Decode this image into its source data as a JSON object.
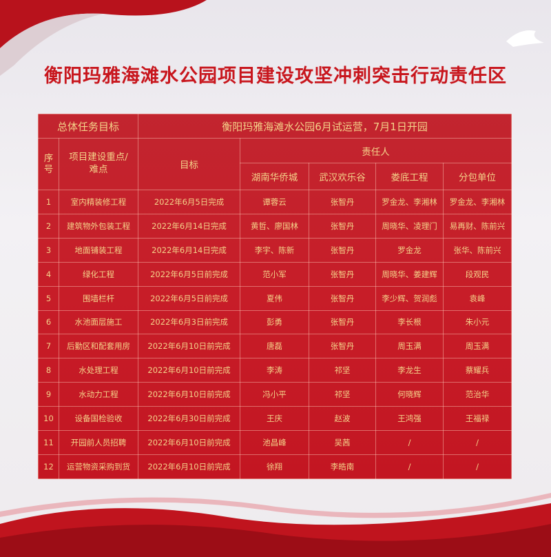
{
  "title": "衡阳玛雅海滩水公园项目建设攻坚冲刺突击行动责任区",
  "table": {
    "overall_label": "总体任务目标",
    "overall_value": "衡阳玛雅海滩水公园6月试运营，7月1日开园",
    "headers": {
      "index": "序号",
      "item": "项目建设重点/难点",
      "target": "目标",
      "responsible": "责任人",
      "units": [
        "湖南华侨城",
        "武汉欢乐谷",
        "娄底工程",
        "分包单位"
      ]
    },
    "rows": [
      [
        "1",
        "室内精装修工程",
        "2022年6月5日完成",
        "谭蓉云",
        "张智丹",
        "罗金龙、李湘林",
        "罗金龙、李湘林"
      ],
      [
        "2",
        "建筑物外包装工程",
        "2022年6月14日完成",
        "黄哲、廖国林",
        "张智丹",
        "周晓华、凌理门",
        "易再财、陈前兴"
      ],
      [
        "3",
        "地面铺装工程",
        "2022年6月14日完成",
        "李宇、陈新",
        "张智丹",
        "罗金龙",
        "张华、陈前兴"
      ],
      [
        "4",
        "绿化工程",
        "2022年6月5日前完成",
        "范小军",
        "张智丹",
        "周晓华、姜建辉",
        "段观民"
      ],
      [
        "5",
        "围墙栏杆",
        "2022年6月5日前完成",
        "夏伟",
        "张智丹",
        "李少辉、贺润彪",
        "袁峰"
      ],
      [
        "6",
        "水池面层施工",
        "2022年6月3日前完成",
        "彭勇",
        "张智丹",
        "李长根",
        "朱小元"
      ],
      [
        "7",
        "后勤区和配套用房",
        "2022年6月10日前完成",
        "唐磊",
        "张智丹",
        "周玉满",
        "周玉满"
      ],
      [
        "8",
        "水处理工程",
        "2022年6月10日前完成",
        "李涛",
        "祁坚",
        "李龙生",
        "蔡耀兵"
      ],
      [
        "9",
        "水动力工程",
        "2022年6月10日前完成",
        "冯小平",
        "祁坚",
        "何晓辉",
        "范治华"
      ],
      [
        "10",
        "设备国检验收",
        "2022年6月30日前完成",
        "王庆",
        "赵波",
        "王鸿强",
        "王福禄"
      ],
      [
        "11",
        "开园前人员招聘",
        "2022年6月10日前完成",
        "池昌峰",
        "吴茜",
        "/",
        "/"
      ],
      [
        "12",
        "运营物资采购到货",
        "2022年6月10日前完成",
        "徐翔",
        "李皓南",
        "/",
        "/"
      ]
    ]
  },
  "colors": {
    "accent": "#c8161d",
    "table_bg": "#c51e2a",
    "table_text": "#f4d38a"
  }
}
